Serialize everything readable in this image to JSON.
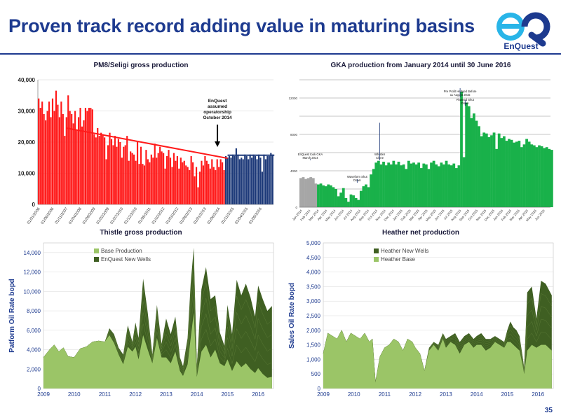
{
  "slide": {
    "title": "Proven track record adding value in maturing basins",
    "page_number": "35",
    "logo_text": "EnQuest",
    "logo_letters": "EQ"
  },
  "colors": {
    "brand_blue": "#1d3a8f",
    "logo_cyan": "#29b5e8",
    "red_bar": "#ff1a1a",
    "navy_bar": "#1f3b7a",
    "gka_green": "#19b14a",
    "gka_gray": "#a6a6a6",
    "dark_green": "#3f5f22",
    "light_green": "#9bc567"
  },
  "chart_data": [
    {
      "id": "pm8",
      "type": "bar",
      "title": "PM8/Seligi gross production",
      "ylim": [
        0,
        40000
      ],
      "yticks": [
        0,
        10000,
        20000,
        30000,
        40000
      ],
      "ytick_labels": [
        "0",
        "10,000",
        "20,000",
        "30,000",
        "40,000"
      ],
      "xtick_labels": [
        "01/01/2006",
        "01/06/2006",
        "01/11/2007",
        "01/04/2008",
        "01/09/2009",
        "01/02/2009",
        "01/07/2010",
        "01/12/2010",
        "01/05/2011",
        "01/10/2012",
        "01/03/2012",
        "01/08/2013",
        "01/01/2013",
        "01/06/2014",
        "01/11/2015",
        "01/04/2015",
        "01/09/2016"
      ],
      "annotation": "EnQuest assumed operatorship October 2014",
      "series": [
        {
          "values": [
            34000,
            31000,
            33000,
            29000,
            27000,
            30000,
            33000,
            28000,
            34000,
            30000,
            36500,
            32000,
            28000,
            33000,
            29000,
            22000,
            28000,
            35000,
            30000,
            29000,
            26000,
            30000,
            24000,
            28000,
            31000,
            25000,
            27000,
            31000,
            30000,
            31000,
            31000,
            30500,
            22500,
            21500,
            24500,
            22000,
            23000,
            22500,
            21500,
            14500,
            19000,
            23000,
            21000,
            19000,
            22000,
            18500,
            21000,
            20000,
            15000,
            18500,
            19000,
            22000,
            14000,
            17000,
            16500,
            16000,
            14000,
            20000,
            13000,
            18500,
            13000,
            12500,
            17500,
            14500,
            13500,
            16000,
            15000,
            19500,
            15000,
            16500,
            18500,
            17000,
            16500,
            11500,
            15500,
            17500,
            15000,
            12000,
            16500,
            14000,
            15500,
            11500,
            15000,
            13500,
            14000,
            12500,
            12000,
            11000,
            15500,
            13500,
            9000,
            12000,
            5500,
            10500,
            14000,
            12500,
            15500,
            14000,
            13000,
            11500,
            14500,
            12000,
            11000,
            14500,
            12000,
            14500,
            13500,
            11000
          ]
        },
        {
          "values": [
            15500,
            15000,
            15500,
            15000,
            16000,
            15500,
            18000,
            16000,
            14500,
            15000,
            14500,
            16000,
            15500,
            14500,
            16000,
            15000,
            16000,
            15500,
            14500,
            16000,
            15000,
            10500,
            16000,
            14500,
            15500,
            15500,
            16500,
            16000
          ]
        }
      ],
      "trendlines": [
        {
          "from": {
            "bar": 16,
            "value": 24500
          },
          "to": {
            "bar": 109,
            "value": 14800
          }
        },
        {
          "from": {
            "bar": 109,
            "value": 15800
          },
          "to": {
            "bar": 136,
            "value": 15800
          }
        }
      ]
    },
    {
      "id": "gka",
      "type": "area",
      "title": "GKA production from January 2014 until 30 June 2016",
      "ylim": [
        0,
        14000
      ],
      "yticks": [
        0,
        2000,
        4000,
        6000,
        8000,
        10000,
        12000,
        14000
      ],
      "ytick_labels": [
        "0",
        "",
        "4000",
        "",
        "8000",
        "",
        "12000",
        ""
      ],
      "xtick_labels": [
        "Jan 2014",
        "Feb 2014",
        "Mar 2014",
        "Apr 2014",
        "May 2014",
        "Jun 2014",
        "Jul 2014",
        "Aug 2014",
        "Sep 2014",
        "Oct 2014",
        "Nov 2014",
        "Dec 2014",
        "Jan 2015",
        "Feb 2015",
        "Mar 2015",
        "Apr 2015",
        "May 2015",
        "Jun 2015",
        "Jul 2015",
        "Aug 2015",
        "Sep 2015",
        "Oct 2015",
        "Nov 2015",
        "Dec 2015",
        "Jan 2016",
        "Feb 2016",
        "Mar 2016",
        "Apr 2016",
        "May 2016",
        "Jun 2016"
      ],
      "annotations": [
        "EnQuest took GKA March 2014",
        "Whistler Clone",
        "Waveform Shut Down",
        "Pre Profit Hedged Before 11 August 2015",
        "Planned Shut Down"
      ],
      "series": [
        {
          "x": [
            0,
            0.3,
            0.6,
            0.9,
            1.2,
            1.5,
            1.8,
            2.1,
            2.4,
            2.7,
            3.0,
            3.3,
            3.6,
            3.9,
            4.2,
            4.5,
            4.8,
            5.1,
            5.4,
            5.7,
            6.0,
            6.3,
            6.6,
            6.9,
            7.2,
            7.5,
            7.8,
            8.1,
            8.4,
            8.7,
            9.0,
            9.3,
            9.6,
            9.9,
            10.2,
            10.5,
            10.8,
            11.1,
            11.4,
            11.7,
            12.0,
            12.3,
            12.6,
            12.9,
            13.2,
            13.5,
            13.8,
            14.1,
            14.4,
            14.7,
            15.0,
            15.3,
            15.6,
            15.9,
            16.2,
            16.5,
            16.8,
            17.1,
            17.4,
            17.7,
            18.0,
            18.3,
            18.6,
            18.9,
            19.2,
            19.5,
            19.8,
            20.1,
            20.4,
            20.7,
            21.0,
            21.3,
            21.6,
            21.9,
            22.2,
            22.5,
            22.8,
            23.1,
            23.4,
            23.7,
            24.0,
            24.3,
            24.6,
            24.9,
            25.2,
            25.5,
            25.8,
            26.1,
            26.4,
            26.7,
            27.0,
            27.3,
            27.6,
            27.9,
            28.2,
            28.5,
            28.8,
            29.1,
            29.4,
            29.7,
            30.0
          ],
          "values": [
            3200,
            3300,
            3100,
            3200,
            3300,
            3200,
            2600,
            2500,
            2600,
            2400,
            2300,
            2500,
            2400,
            2200,
            2000,
            1200,
            1600,
            2100,
            1000,
            600,
            1400,
            1300,
            1000,
            800,
            1800,
            2300,
            2500,
            2200,
            3600,
            4200,
            4900,
            5100,
            4700,
            5000,
            4600,
            4900,
            4700,
            5100,
            4700,
            5000,
            4600,
            4700,
            4200,
            5100,
            4800,
            4900,
            4700,
            4900,
            4300,
            4800,
            4700,
            4200,
            4900,
            5100,
            4700,
            4500,
            4900,
            4700,
            5100,
            4700,
            4600,
            4800,
            4300,
            4600,
            12700,
            5500,
            11500,
            11100,
            9800,
            10300,
            9500,
            8900,
            7800,
            8200,
            8100,
            7700,
            7900,
            8200,
            6400,
            8100,
            7600,
            7800,
            7300,
            7500,
            7400,
            7100,
            7200,
            7300,
            6600,
            6900,
            7500,
            7200,
            6900,
            6800,
            6600,
            6800,
            6700,
            6500,
            6600,
            6400,
            6300
          ]
        }
      ]
    },
    {
      "id": "thistle",
      "type": "area",
      "title": "Thistle gross production",
      "ylabel": "Patform Oil Rate bopd",
      "ylim": [
        0,
        15000
      ],
      "yticks": [
        0,
        2000,
        4000,
        6000,
        8000,
        10000,
        12000,
        14000
      ],
      "ytick_labels": [
        "0",
        "2,000",
        "4,000",
        "6,000",
        "8,000",
        "10,000",
        "12,000",
        "14,000"
      ],
      "xlim": [
        2009,
        2016.5
      ],
      "xticks": [
        2009,
        2010,
        2011,
        2012,
        2013,
        2014,
        2015,
        2016
      ],
      "xtick_labels": [
        "2009",
        "2010",
        "2011",
        "2012",
        "2013",
        "2014",
        "2015",
        "2016"
      ],
      "series": [
        {
          "name": "Base Production",
          "x": [
            2009,
            2009.2,
            2009.35,
            2009.5,
            2009.65,
            2009.8,
            2010,
            2010.2,
            2010.4,
            2010.6,
            2010.8,
            2011,
            2011.15,
            2011.3,
            2011.45,
            2011.6,
            2011.75,
            2011.9,
            2012,
            2012.1,
            2012.25,
            2012.4,
            2012.55,
            2012.7,
            2012.85,
            2013,
            2013.15,
            2013.3,
            2013.45,
            2013.55,
            2013.7,
            2013.8,
            2013.9,
            2014,
            2014.15,
            2014.3,
            2014.45,
            2014.6,
            2014.75,
            2014.9,
            2015,
            2015.15,
            2015.3,
            2015.45,
            2015.6,
            2015.75,
            2015.9,
            2016,
            2016.15,
            2016.3,
            2016.45
          ],
          "values": [
            3200,
            4000,
            4500,
            3800,
            4200,
            3300,
            3200,
            4100,
            4300,
            4800,
            4900,
            4800,
            5500,
            4700,
            3500,
            2500,
            4300,
            3800,
            4300,
            3000,
            5500,
            4000,
            2600,
            5200,
            3200,
            3200,
            2600,
            3800,
            1800,
            1300,
            2500,
            5200,
            7800,
            1200,
            3800,
            4500,
            3200,
            4000,
            2600,
            2300,
            3000,
            1800,
            2800,
            2200,
            2600,
            2000,
            1600,
            2100,
            1500,
            1100,
            1200
          ]
        },
        {
          "name": "EnQuest New Wells",
          "x": [
            2009,
            2009.2,
            2009.35,
            2009.5,
            2009.65,
            2009.8,
            2010,
            2010.2,
            2010.4,
            2010.6,
            2010.8,
            2011,
            2011.15,
            2011.3,
            2011.45,
            2011.6,
            2011.75,
            2011.9,
            2012,
            2012.1,
            2012.25,
            2012.4,
            2012.55,
            2012.7,
            2012.85,
            2013,
            2013.15,
            2013.3,
            2013.45,
            2013.55,
            2013.7,
            2013.8,
            2013.9,
            2014,
            2014.15,
            2014.3,
            2014.45,
            2014.6,
            2014.75,
            2014.9,
            2015,
            2015.15,
            2015.3,
            2015.45,
            2015.6,
            2015.75,
            2015.9,
            2016,
            2016.15,
            2016.3,
            2016.45
          ],
          "values": [
            3200,
            4000,
            4500,
            3800,
            4200,
            3300,
            3200,
            4100,
            4300,
            4800,
            4900,
            4800,
            6200,
            5600,
            4200,
            3500,
            6500,
            4800,
            6800,
            5200,
            11300,
            7800,
            3500,
            8600,
            4600,
            7200,
            5600,
            7400,
            3200,
            2300,
            5200,
            10800,
            14500,
            2300,
            10200,
            12500,
            9200,
            9600,
            5800,
            4400,
            8600,
            5600,
            11200,
            9600,
            10800,
            9400,
            7400,
            10600,
            9200,
            8000,
            8500
          ]
        }
      ]
    },
    {
      "id": "heather",
      "type": "area",
      "title": "Heather net production",
      "ylabel": "Sales Oil Rate bopd",
      "ylim": [
        0,
        5000
      ],
      "yticks": [
        0,
        500,
        1000,
        1500,
        2000,
        2500,
        3000,
        3500,
        4000,
        4500,
        5000
      ],
      "ytick_labels": [
        "0",
        "500",
        "1,000",
        "1,500",
        "2,000",
        "2,500",
        "3,000",
        "3,500",
        "4,000",
        "4,500",
        "5,000"
      ],
      "xlim": [
        2009,
        2016.5
      ],
      "xticks": [
        2009,
        2010,
        2011,
        2012,
        2013,
        2014,
        2015,
        2016
      ],
      "xtick_labels": [
        "2009",
        "2010",
        "2011",
        "2012",
        "2013",
        "2014",
        "2015",
        "2016"
      ],
      "series": [
        {
          "name": "Heather Base",
          "x": [
            2009,
            2009.15,
            2009.3,
            2009.45,
            2009.6,
            2009.75,
            2009.9,
            2010.05,
            2010.2,
            2010.35,
            2010.5,
            2010.6,
            2010.7,
            2010.85,
            2011,
            2011.15,
            2011.3,
            2011.45,
            2011.6,
            2011.75,
            2011.9,
            2012,
            2012.15,
            2012.3,
            2012.45,
            2012.6,
            2012.75,
            2012.9,
            2013,
            2013.15,
            2013.3,
            2013.45,
            2013.6,
            2013.75,
            2013.9,
            2014,
            2014.15,
            2014.3,
            2014.45,
            2014.6,
            2014.75,
            2014.9,
            2015,
            2015.1,
            2015.2,
            2015.3,
            2015.4,
            2015.5,
            2015.55,
            2015.65,
            2015.8,
            2015.95,
            2016.1,
            2016.25,
            2016.45
          ],
          "values": [
            1200,
            1900,
            1800,
            1700,
            2000,
            1600,
            1900,
            1800,
            1700,
            1900,
            1600,
            1700,
            200,
            1100,
            1400,
            1500,
            1700,
            1600,
            1300,
            1700,
            1600,
            1400,
            1200,
            600,
            1300,
            1500,
            1300,
            1700,
            1400,
            1600,
            1500,
            1200,
            1500,
            1600,
            1400,
            1500,
            1500,
            1300,
            1400,
            1600,
            1500,
            1400,
            1600,
            1600,
            1500,
            1400,
            1300,
            800,
            500,
            1300,
            1500,
            1400,
            1500,
            1500,
            1300
          ]
        },
        {
          "name": "Heather New Wells",
          "x": [
            2009,
            2009.15,
            2009.3,
            2009.45,
            2009.6,
            2009.75,
            2009.9,
            2010.05,
            2010.2,
            2010.35,
            2010.5,
            2010.6,
            2010.7,
            2010.85,
            2011,
            2011.15,
            2011.3,
            2011.45,
            2011.6,
            2011.75,
            2011.9,
            2012,
            2012.15,
            2012.3,
            2012.45,
            2012.6,
            2012.75,
            2012.9,
            2013,
            2013.15,
            2013.3,
            2013.45,
            2013.6,
            2013.75,
            2013.9,
            2014,
            2014.15,
            2014.3,
            2014.45,
            2014.6,
            2014.75,
            2014.9,
            2015,
            2015.1,
            2015.2,
            2015.3,
            2015.4,
            2015.5,
            2015.55,
            2015.65,
            2015.8,
            2015.95,
            2016.1,
            2016.25,
            2016.45
          ],
          "values": [
            1200,
            1900,
            1800,
            1700,
            2000,
            1600,
            1900,
            1800,
            1700,
            1900,
            1600,
            1700,
            200,
            1100,
            1400,
            1500,
            1700,
            1600,
            1300,
            1700,
            1600,
            1400,
            1200,
            600,
            1400,
            1600,
            1500,
            1900,
            1700,
            1800,
            1900,
            1600,
            1800,
            1900,
            1700,
            1800,
            1900,
            1700,
            1700,
            1800,
            1700,
            1600,
            2000,
            2300,
            2100,
            2000,
            1800,
            1100,
            700,
            3300,
            3500,
            2400,
            3700,
            3600,
            3200
          ]
        }
      ]
    }
  ]
}
